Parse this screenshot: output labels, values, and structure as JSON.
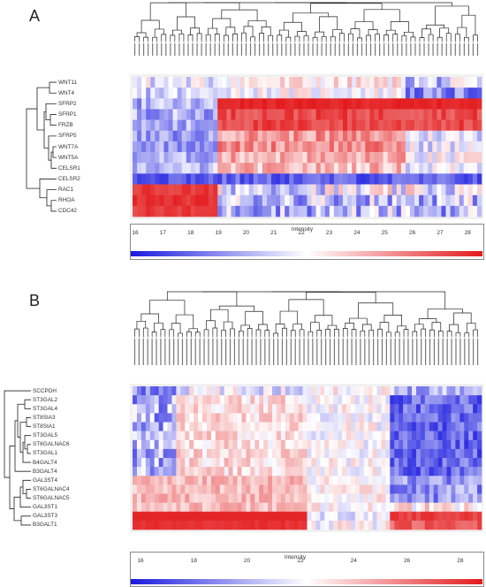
{
  "panel_a": {
    "label": "A",
    "genes": [
      "WNT11",
      "WNT4",
      "SFRP2",
      "SFRP1",
      "FRZB",
      "SFRP5",
      "WNT7A",
      "WNT5A",
      "CELSR1",
      "CELSR2",
      "RAC1",
      "RHOA",
      "CDC42"
    ],
    "scale": {
      "title": "Intensity",
      "ticks": [
        "16",
        "17",
        "18",
        "19",
        "20",
        "21",
        "22",
        "23",
        "24",
        "25",
        "26",
        "27",
        "28"
      ],
      "min": 16,
      "max": 28.5
    }
  },
  "panel_b": {
    "label": "B",
    "genes": [
      "SCCPDH",
      "ST3GAL2",
      "ST3GAL4",
      "ST8SIA3",
      "ST8SIA1",
      "ST3GAL5",
      "ST6GALNAC6",
      "ST3GAL1",
      "B4GALT4",
      "B3GALT4",
      "GAL3ST4",
      "ST6GALNAC4",
      "ST6GALNAC5",
      "GAL3ST1",
      "GAL3ST3",
      "B3GALT1"
    ],
    "scale": {
      "title": "Intensity",
      "ticks": [
        "16",
        "18",
        "20",
        "22",
        "24",
        "26",
        "28"
      ],
      "min": 15.8,
      "max": 28.8
    }
  },
  "colors": {
    "low": "#1a1adf",
    "mid": "#ffffff",
    "high": "#e31a1c"
  }
}
